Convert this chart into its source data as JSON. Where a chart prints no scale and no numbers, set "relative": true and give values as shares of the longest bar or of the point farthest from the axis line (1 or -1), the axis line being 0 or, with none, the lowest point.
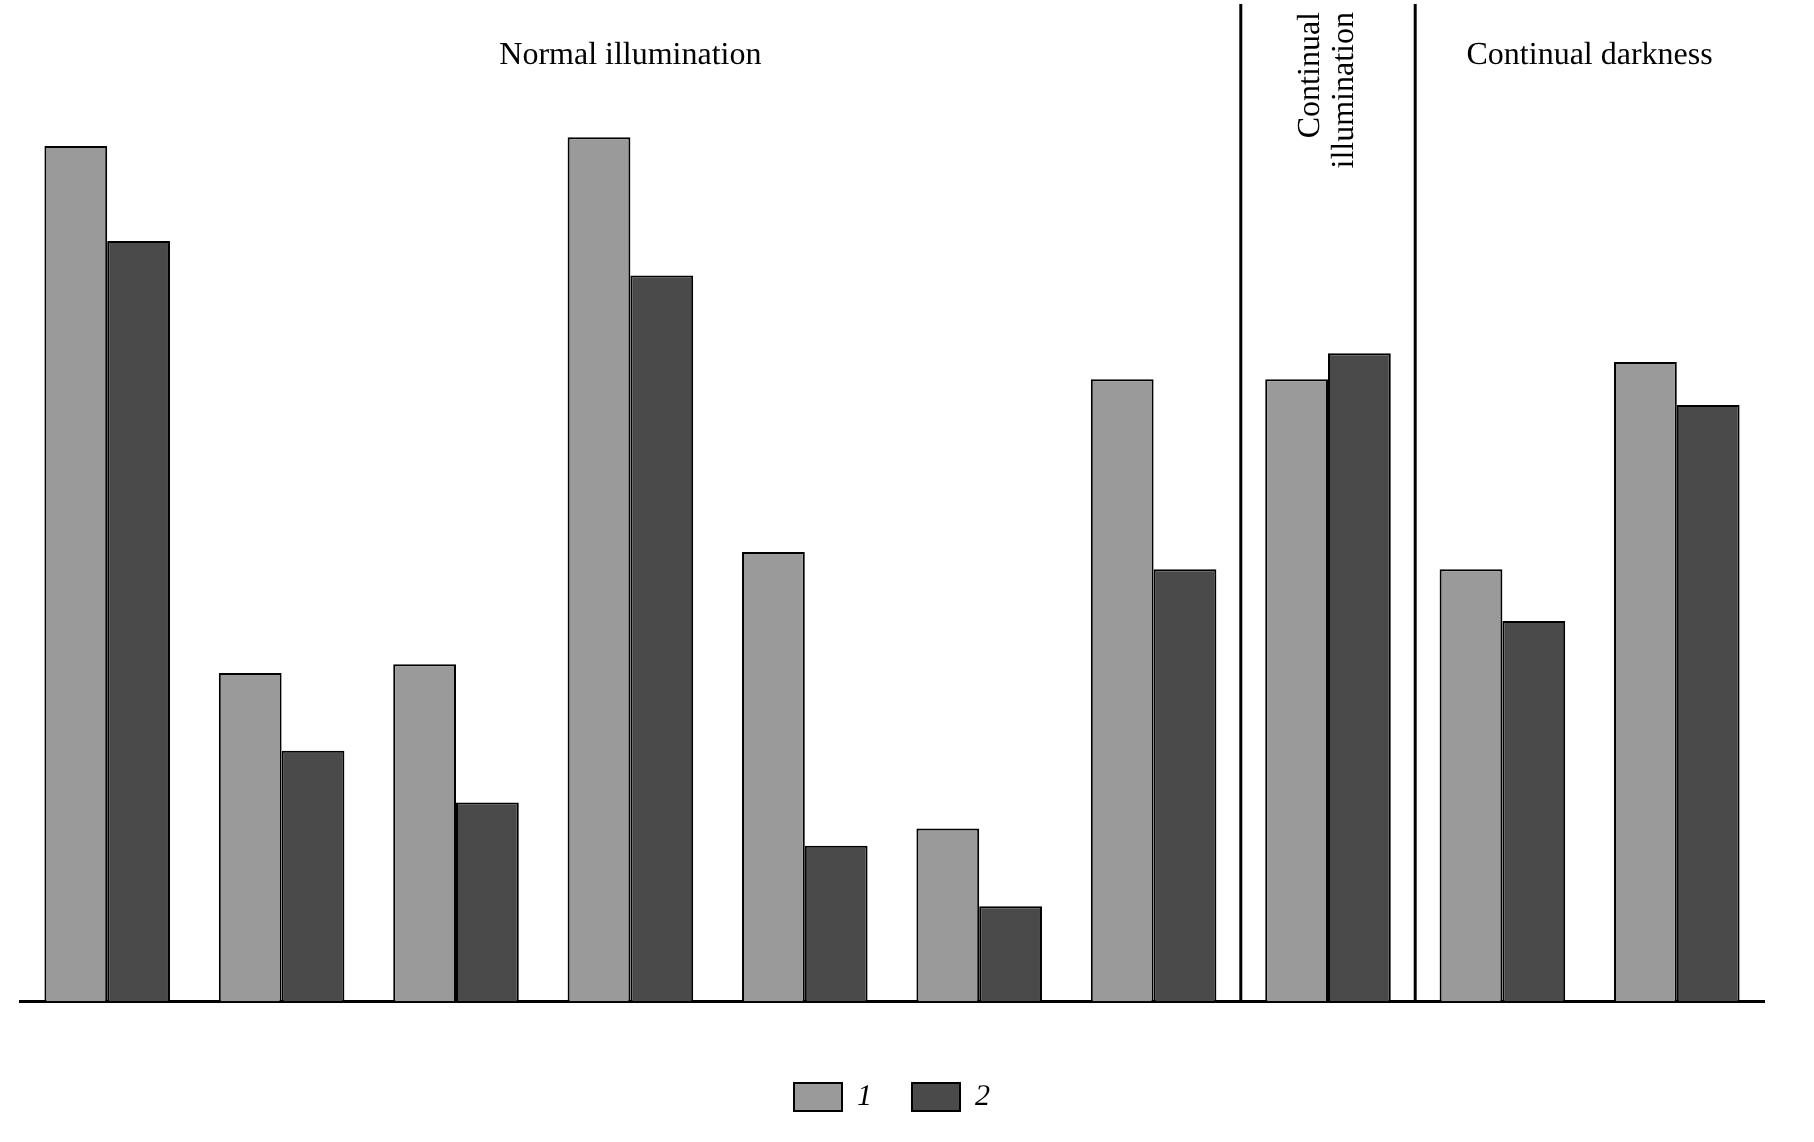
{
  "chart_data": {
    "type": "bar",
    "relative": true,
    "categories": [
      null,
      null,
      null,
      null,
      null,
      null,
      null,
      null,
      null,
      null
    ],
    "series": [
      {
        "name": "1",
        "color": "#9a9a9a",
        "values": [
          0.99,
          0.38,
          0.39,
          1,
          0.52,
          0.2,
          0.72,
          0.72,
          0.5,
          0.74
        ]
      },
      {
        "name": "2",
        "color": "#4a4a4a",
        "values": [
          0.88,
          0.29,
          0.23,
          0.84,
          0.18,
          0.11,
          0.5,
          0.75,
          0.44,
          0.69
        ]
      }
    ],
    "annotations": [
      "Normal illumination",
      "Continual illumination",
      "Continual darkness"
    ],
    "legend": "bottom",
    "grid": false
  }
}
